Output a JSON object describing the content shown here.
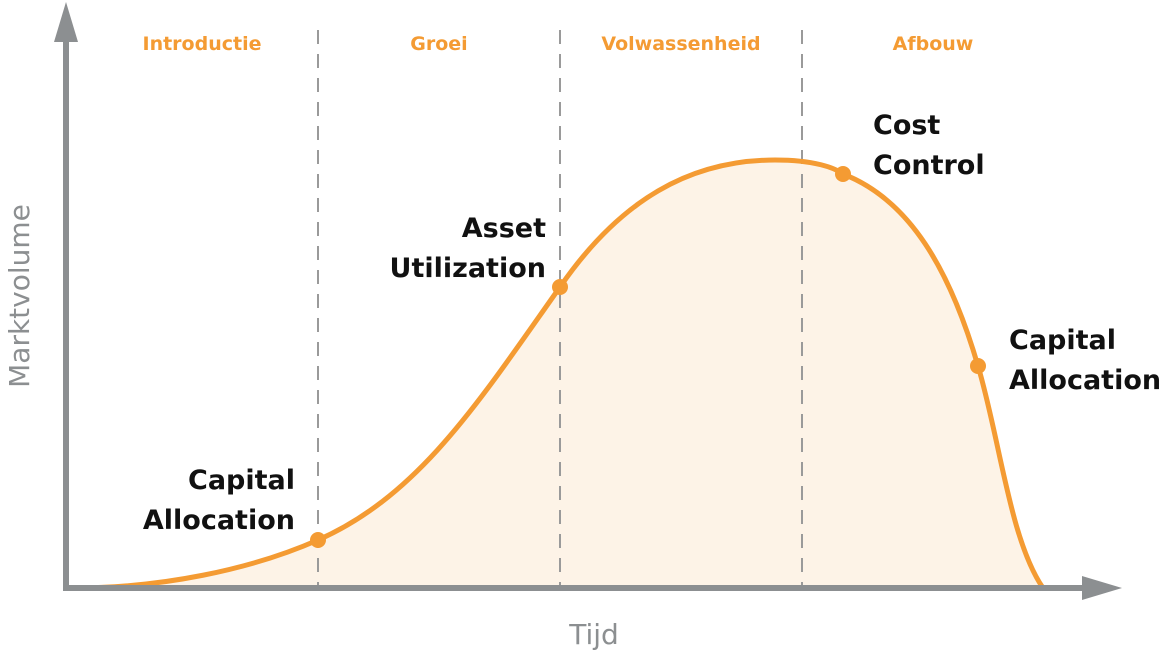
{
  "phases": [
    "Introductie",
    "Groei",
    "Volwassenheid",
    "Afbouw"
  ],
  "axes": {
    "x_label": "Tijd",
    "y_label": "Marktvolume"
  },
  "points": [
    {
      "line1": "Capital",
      "line2": "Allocation"
    },
    {
      "line1": "Asset",
      "line2": "Utilization"
    },
    {
      "line1": "Cost",
      "line2": "Control"
    },
    {
      "line1": "Capital",
      "line2": "Allocation"
    }
  ],
  "colors": {
    "curve": "#F49B33",
    "fill": "#FDF3E7",
    "axis": "#8c8f91",
    "divider": "#9a9a9a",
    "text": "#111111"
  }
}
